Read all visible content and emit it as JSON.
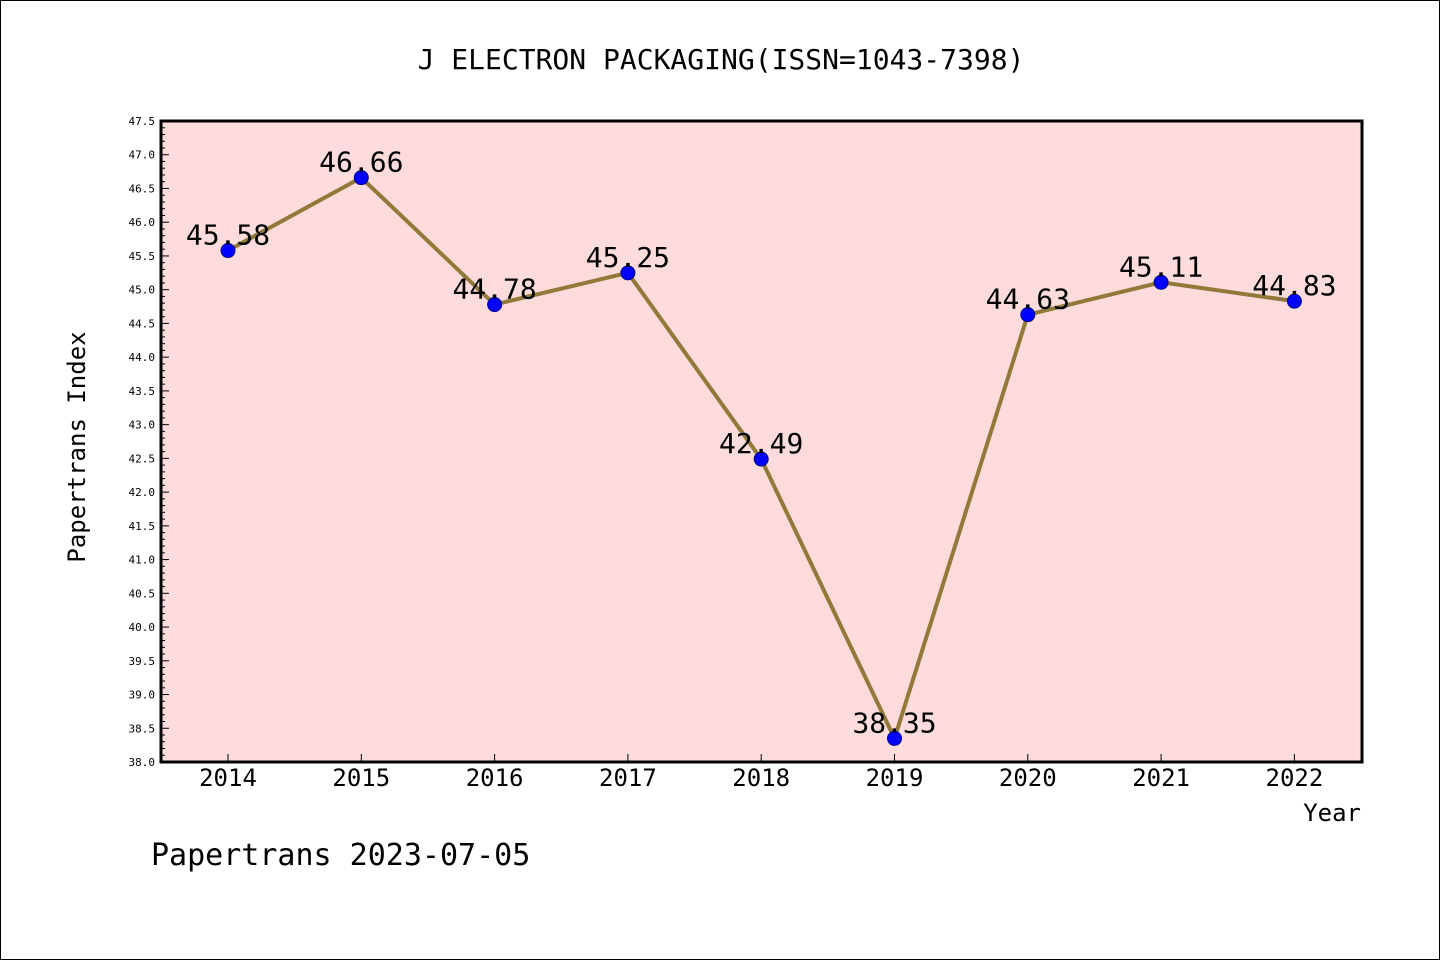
{
  "chart_data": {
    "type": "line",
    "title": "J ELECTRON PACKAGING(ISSN=1043-7398)",
    "xlabel": "Year",
    "ylabel": "Papertrans Index",
    "categories": [
      "2014",
      "2015",
      "2016",
      "2017",
      "2018",
      "2019",
      "2020",
      "2021",
      "2022"
    ],
    "series": [
      {
        "values": [
          45.58,
          46.66,
          44.78,
          45.25,
          42.49,
          38.35,
          44.63,
          45.11,
          44.83
        ]
      }
    ],
    "data_labels": [
      "45.58",
      "46.66",
      "44.78",
      "45.25",
      "42.49",
      "38.35",
      "44.63",
      "45.11",
      "44.83"
    ],
    "ylim": [
      38.0,
      47.5
    ],
    "yticks": [
      "38.0",
      "38.5",
      "39.0",
      "39.5",
      "40.0",
      "40.5",
      "41.0",
      "41.5",
      "42.0",
      "42.5",
      "43.0",
      "43.5",
      "44.0",
      "44.5",
      "45.0",
      "45.5",
      "46.0",
      "46.5",
      "47.0",
      "47.5"
    ],
    "grid": false,
    "colors": {
      "plot_background": "#fddcdb",
      "line": "#8f7a3a",
      "marker": "#0000ff"
    }
  },
  "footer": "Papertrans 2023-07-05"
}
